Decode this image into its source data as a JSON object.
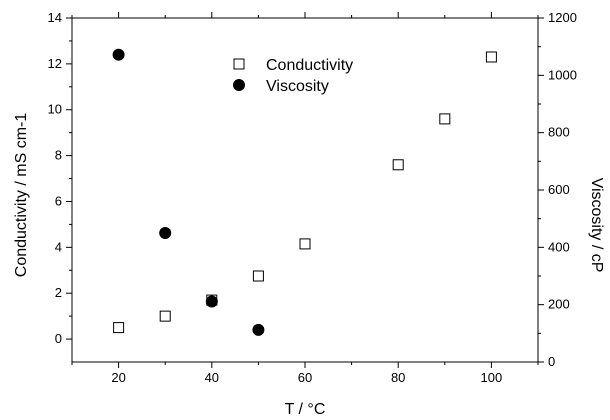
{
  "chart_data": {
    "type": "scatter",
    "xlabel": "T / °C",
    "ylabel_left": "Conductivity / mS cm-1",
    "ylabel_right": "Viscosity / cP",
    "xlim": [
      10,
      110
    ],
    "ylim_left": [
      -1,
      14
    ],
    "ylim_right": [
      0,
      1200
    ],
    "x_ticks": [
      20,
      40,
      60,
      80,
      100
    ],
    "y_ticks_left": [
      0,
      2,
      4,
      6,
      8,
      10,
      12,
      14
    ],
    "y_ticks_right": [
      0,
      200,
      400,
      600,
      800,
      1000,
      1200
    ],
    "legend_position": "top-center",
    "series": [
      {
        "name": "Conductivity",
        "axis": "left",
        "marker": "open-square",
        "x": [
          20,
          30,
          40,
          50,
          60,
          80,
          90,
          100
        ],
        "y": [
          0.5,
          1.0,
          1.7,
          2.75,
          4.15,
          7.6,
          9.6,
          12.3
        ]
      },
      {
        "name": "Viscosity",
        "axis": "right",
        "marker": "filled-circle",
        "x": [
          20,
          30,
          40,
          50
        ],
        "y": [
          1072,
          450,
          211,
          112
        ]
      }
    ]
  }
}
